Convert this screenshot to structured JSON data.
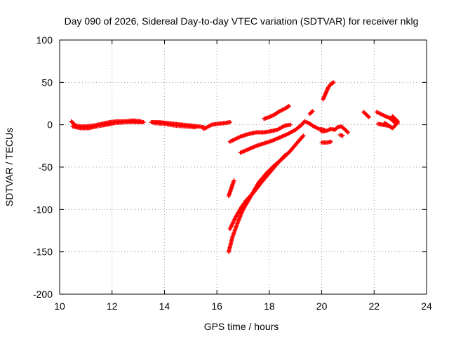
{
  "chart_data": {
    "type": "scatter",
    "title": "Day 090 of 2026, Sidereal Day-to-day VTEC variation (SDTVAR) for receiver nklg",
    "xlabel": "GPS time / hours",
    "ylabel": "SDTVAR / TECUs",
    "xlim": [
      10,
      24
    ],
    "ylim": [
      -200,
      100
    ],
    "xticks": [
      10,
      12,
      14,
      16,
      18,
      20,
      22,
      24
    ],
    "yticks": [
      -200,
      -150,
      -100,
      -50,
      0,
      50,
      100
    ],
    "grid": true,
    "marker": "+",
    "color": "#ff0000",
    "segments": [
      {
        "name": "flat-early",
        "points": [
          [
            10.45,
            4
          ],
          [
            10.6,
            -1
          ],
          [
            10.8,
            -2
          ],
          [
            11.0,
            -2
          ],
          [
            11.3,
            -1
          ],
          [
            11.6,
            1
          ],
          [
            11.9,
            3
          ],
          [
            12.2,
            4
          ],
          [
            12.5,
            4
          ],
          [
            12.8,
            5
          ],
          [
            13.1,
            4
          ]
        ]
      },
      {
        "name": "flat-early-lower",
        "points": [
          [
            10.5,
            -2
          ],
          [
            10.8,
            -4
          ],
          [
            11.1,
            -4
          ],
          [
            11.4,
            -2
          ],
          [
            11.8,
            0
          ],
          [
            12.1,
            2
          ],
          [
            12.5,
            3
          ],
          [
            12.9,
            3
          ],
          [
            13.2,
            3
          ]
        ]
      },
      {
        "name": "flat-mid",
        "points": [
          [
            13.5,
            3
          ],
          [
            13.8,
            3
          ],
          [
            14.1,
            2
          ],
          [
            14.4,
            1
          ],
          [
            14.7,
            0
          ],
          [
            15.0,
            -1
          ],
          [
            15.3,
            -2
          ],
          [
            15.5,
            -3
          ]
        ]
      },
      {
        "name": "flat-mid-lower",
        "points": [
          [
            13.6,
            2
          ],
          [
            14.0,
            1
          ],
          [
            14.4,
            -1
          ],
          [
            14.8,
            -2
          ],
          [
            15.2,
            -3
          ]
        ]
      },
      {
        "name": "flat-late",
        "points": [
          [
            15.5,
            -5
          ],
          [
            15.8,
            0
          ],
          [
            16.0,
            1
          ],
          [
            16.3,
            2
          ],
          [
            16.5,
            3
          ]
        ]
      },
      {
        "name": "rise-a",
        "points": [
          [
            16.45,
            -150
          ],
          [
            16.6,
            -132
          ],
          [
            16.8,
            -115
          ],
          [
            17.0,
            -100
          ],
          [
            17.3,
            -84
          ],
          [
            17.6,
            -68
          ],
          [
            17.9,
            -57
          ],
          [
            18.2,
            -48
          ],
          [
            18.5,
            -40
          ],
          [
            18.8,
            -31
          ],
          [
            19.1,
            -20
          ],
          [
            19.3,
            -13
          ]
        ]
      },
      {
        "name": "rise-b",
        "points": [
          [
            16.5,
            -123
          ],
          [
            16.7,
            -110
          ],
          [
            16.9,
            -99
          ],
          [
            17.1,
            -90
          ],
          [
            17.4,
            -80
          ],
          [
            17.7,
            -68
          ],
          [
            18.0,
            -57
          ],
          [
            18.3,
            -46
          ],
          [
            18.6,
            -36
          ]
        ]
      },
      {
        "name": "short-drop",
        "points": [
          [
            16.45,
            -84
          ],
          [
            16.55,
            -75
          ],
          [
            16.65,
            -66
          ]
        ]
      },
      {
        "name": "arc-mid",
        "points": [
          [
            16.5,
            -20
          ],
          [
            16.7,
            -17
          ],
          [
            16.9,
            -14
          ],
          [
            17.2,
            -11
          ],
          [
            17.5,
            -9
          ],
          [
            17.8,
            -9
          ],
          [
            18.0,
            -8
          ],
          [
            18.3,
            -6
          ],
          [
            18.6,
            -1
          ],
          [
            18.8,
            0
          ]
        ]
      },
      {
        "name": "arc-lower",
        "points": [
          [
            16.9,
            -33
          ],
          [
            17.2,
            -29
          ],
          [
            17.5,
            -25
          ],
          [
            17.8,
            -22
          ],
          [
            18.1,
            -19
          ],
          [
            18.4,
            -15
          ],
          [
            18.7,
            -11
          ],
          [
            19.0,
            -6
          ],
          [
            19.2,
            -1
          ],
          [
            19.35,
            4
          ],
          [
            19.5,
            2
          ],
          [
            19.7,
            -2
          ],
          [
            19.9,
            -5
          ],
          [
            20.1,
            -6
          ]
        ]
      },
      {
        "name": "late-wiggle",
        "points": [
          [
            20.0,
            -8
          ],
          [
            20.2,
            -7
          ],
          [
            20.35,
            -5
          ],
          [
            20.5,
            -6
          ],
          [
            20.6,
            -3
          ],
          [
            20.75,
            -2
          ],
          [
            20.9,
            -6
          ],
          [
            21.0,
            -9
          ]
        ]
      },
      {
        "name": "dip-late",
        "points": [
          [
            20.0,
            -21
          ],
          [
            20.2,
            -21
          ],
          [
            20.35,
            -20
          ]
        ]
      },
      {
        "name": "bump-late",
        "points": [
          [
            20.7,
            -12
          ],
          [
            20.8,
            -13
          ]
        ]
      },
      {
        "name": "rise-upper",
        "points": [
          [
            17.8,
            7
          ],
          [
            18.0,
            9
          ],
          [
            18.2,
            12
          ],
          [
            18.4,
            16
          ],
          [
            18.6,
            19
          ],
          [
            18.75,
            22
          ]
        ]
      },
      {
        "name": "spike-up",
        "points": [
          [
            20.05,
            30
          ],
          [
            20.15,
            37
          ],
          [
            20.25,
            44
          ],
          [
            20.35,
            48
          ],
          [
            20.45,
            50
          ]
        ]
      },
      {
        "name": "small-spike",
        "points": [
          [
            19.55,
            13
          ],
          [
            19.65,
            16
          ]
        ]
      },
      {
        "name": "end-a",
        "points": [
          [
            21.6,
            15
          ],
          [
            21.7,
            12
          ],
          [
            21.8,
            9
          ]
        ]
      },
      {
        "name": "end-b",
        "points": [
          [
            22.1,
            15
          ],
          [
            22.3,
            12
          ],
          [
            22.5,
            9
          ],
          [
            22.6,
            8
          ],
          [
            22.7,
            5
          ],
          [
            22.8,
            3
          ],
          [
            22.9,
            2
          ]
        ]
      },
      {
        "name": "end-c",
        "points": [
          [
            22.4,
            2
          ],
          [
            22.5,
            0
          ],
          [
            22.6,
            -2
          ],
          [
            22.7,
            -4
          ],
          [
            22.8,
            -1
          ],
          [
            22.9,
            4
          ],
          [
            22.8,
            7
          ],
          [
            22.7,
            10
          ]
        ]
      },
      {
        "name": "end-d",
        "points": [
          [
            22.15,
            1
          ],
          [
            22.5,
            -1
          ]
        ]
      }
    ]
  }
}
